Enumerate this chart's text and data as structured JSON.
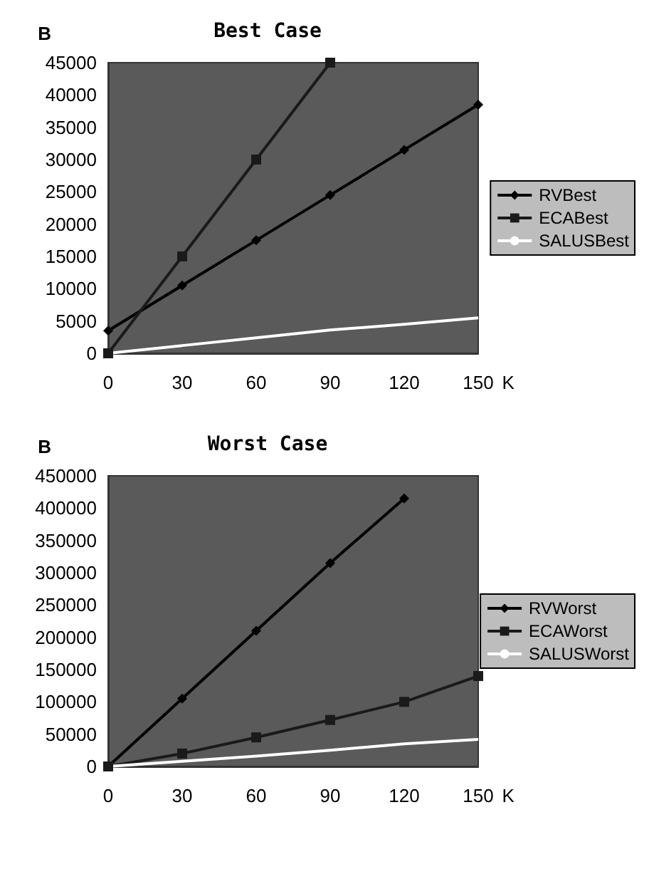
{
  "chart_data": [
    {
      "type": "line",
      "title": "Best Case",
      "xlabel": "K",
      "ylabel": "B",
      "categories": [
        "0",
        "30",
        "60",
        "90",
        "120",
        "150"
      ],
      "ylim": [
        0,
        45000
      ],
      "yticks": [
        0,
        5000,
        10000,
        15000,
        20000,
        25000,
        30000,
        35000,
        40000,
        45000
      ],
      "grid": false,
      "legend": "right",
      "series": [
        {
          "name": "RVBest",
          "color": "#000000",
          "marker": "diamond",
          "values": [
            3500,
            10500,
            17500,
            24500,
            31500,
            38500
          ]
        },
        {
          "name": "ECABest",
          "color": "#1a1a1a",
          "marker": "square",
          "values": [
            0,
            15000,
            30000,
            45000,
            null,
            null
          ]
        },
        {
          "name": "SALUSBest",
          "color": "#ffffff",
          "marker": "none",
          "values": [
            0,
            1200,
            2400,
            3600,
            4500,
            5500
          ]
        }
      ]
    },
    {
      "type": "line",
      "title": "Worst Case",
      "xlabel": "K",
      "ylabel": "B",
      "categories": [
        "0",
        "30",
        "60",
        "90",
        "120",
        "150"
      ],
      "ylim": [
        0,
        450000
      ],
      "yticks": [
        0,
        50000,
        100000,
        150000,
        200000,
        250000,
        300000,
        350000,
        400000,
        450000
      ],
      "grid": false,
      "legend": "right",
      "series": [
        {
          "name": "RVWorst",
          "color": "#000000",
          "marker": "diamond",
          "values": [
            0,
            105000,
            210000,
            315000,
            415000,
            null
          ]
        },
        {
          "name": "ECAWorst",
          "color": "#1a1a1a",
          "marker": "square",
          "values": [
            0,
            20000,
            45000,
            72000,
            100000,
            140000
          ]
        },
        {
          "name": "SALUSWorst",
          "color": "#ffffff",
          "marker": "none",
          "values": [
            0,
            8000,
            16000,
            25000,
            35000,
            42000
          ]
        }
      ]
    }
  ]
}
